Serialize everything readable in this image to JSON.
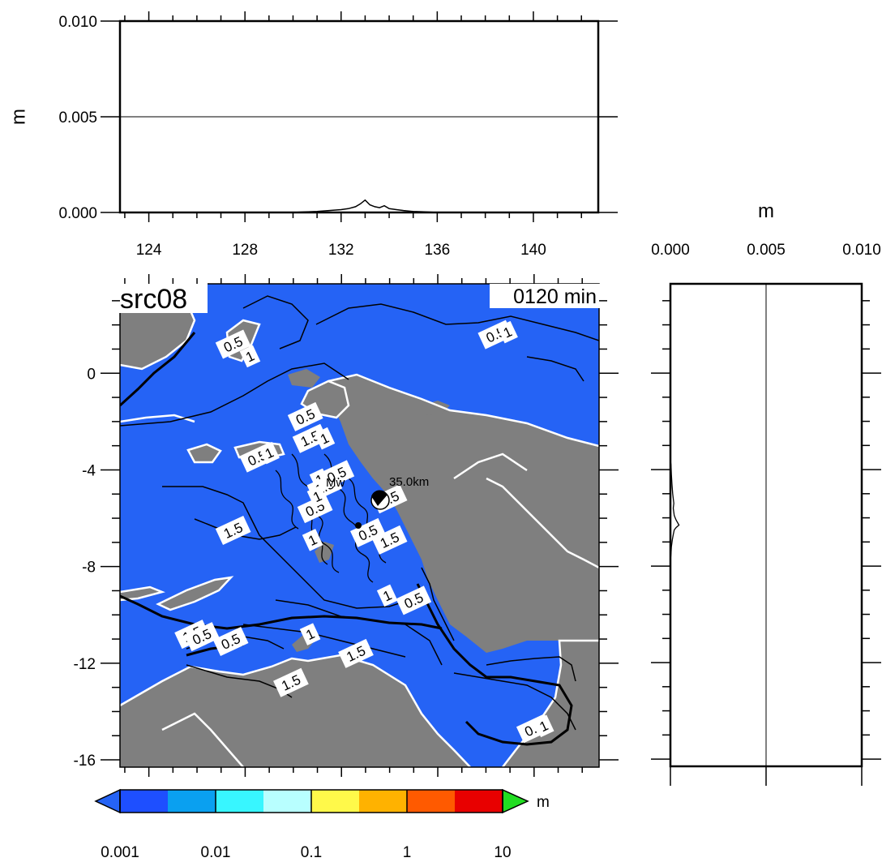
{
  "chart_data": [
    {
      "name": "top-profile",
      "type": "line",
      "ylabel": "m",
      "xlim": [
        122.8,
        142.7
      ],
      "ylim": [
        0,
        0.01
      ],
      "x_ticks": [
        "124",
        "128",
        "132",
        "136",
        "140"
      ],
      "y_ticks": [
        "0.000",
        "0.005",
        "0.010"
      ],
      "gridline_y": 0.005,
      "series": [
        {
          "x": [
            122.8,
            128,
            129,
            130,
            130.5,
            131,
            131.5,
            132,
            132.3,
            132.6,
            132.8,
            133,
            133.2,
            133.4,
            133.6,
            133.8,
            134,
            134.3,
            134.6,
            135,
            135.5,
            136,
            137,
            142.7
          ],
          "y": [
            0,
            0,
            0,
            0,
            3e-05,
            5e-05,
            0.0001,
            0.00015,
            0.0002,
            0.0003,
            0.00045,
            0.00065,
            0.0004,
            0.0003,
            0.00025,
            0.00035,
            0.0002,
            0.00015,
            0.0001,
            5e-05,
            3e-05,
            0,
            0,
            0
          ]
        }
      ]
    },
    {
      "name": "side-profile",
      "type": "line",
      "xlabel": "m",
      "xlim": [
        0,
        0.01
      ],
      "ylim": [
        -16.3,
        3.7
      ],
      "x_ticks": [
        "0.000",
        "0.005",
        "0.010"
      ],
      "gridline_x": 0.005,
      "series": [
        {
          "x": [
            0,
            0,
            0,
            3e-05,
            5e-05,
            8e-05,
            0.00012,
            0.00018,
            0.00015,
            0.0002,
            0.00025,
            0.0003,
            0.00045,
            0.0003,
            0.0002,
            0.00015,
            0.0001,
            5e-05,
            3e-05,
            0,
            0
          ],
          "y": [
            3.7,
            -3.4,
            -3.6,
            -3.8,
            -4.2,
            -4.6,
            -5.0,
            -5.4,
            -5.6,
            -5.9,
            -6.0,
            -6.1,
            -6.3,
            -6.4,
            -6.5,
            -6.7,
            -6.9,
            -7.2,
            -7.5,
            -7.8,
            -16.3
          ]
        }
      ]
    },
    {
      "name": "main-map",
      "type": "heatmap",
      "title": "src08",
      "time_label": "0120 min",
      "xlim": [
        122.8,
        142.7
      ],
      "ylim": [
        -16.3,
        3.7
      ],
      "y_ticks": [
        "0",
        "-4",
        "-8",
        "-12",
        "-16"
      ],
      "ocean_color": "#2563f5",
      "land_color": "#7f7f7f",
      "coast_color": "#ffffff",
      "contour_labels": [
        {
          "text": "0.5",
          "lon": 127.5,
          "lat": 1.2
        },
        {
          "text": "1",
          "lon": 128.2,
          "lat": 0.7
        },
        {
          "text": "0.5",
          "lon": 138.4,
          "lat": 1.6
        },
        {
          "text": "1",
          "lon": 138.9,
          "lat": 1.7
        },
        {
          "text": "0.5",
          "lon": 130.5,
          "lat": -1.8
        },
        {
          "text": "1.5",
          "lon": 130.7,
          "lat": -2.7
        },
        {
          "text": "1",
          "lon": 131.3,
          "lat": -2.7
        },
        {
          "text": "0.5",
          "lon": 128.5,
          "lat": -3.5
        },
        {
          "text": "1",
          "lon": 129.0,
          "lat": -3.3
        },
        {
          "text": "1",
          "lon": 131.1,
          "lat": -4.4
        },
        {
          "text": "1.5",
          "lon": 131.3,
          "lat": -4.7
        },
        {
          "text": "0.5",
          "lon": 131.8,
          "lat": -4.2
        },
        {
          "text": "0.5",
          "lon": 130.9,
          "lat": -5.6
        },
        {
          "text": "1",
          "lon": 131.0,
          "lat": -5.1
        },
        {
          "text": "1.5",
          "lon": 134.0,
          "lat": -5.2
        },
        {
          "text": "0.5",
          "lon": 133.1,
          "lat": -6.6
        },
        {
          "text": "1.5",
          "lon": 134.0,
          "lat": -6.9
        },
        {
          "text": "1.5",
          "lon": 127.5,
          "lat": -6.5
        },
        {
          "text": "1",
          "lon": 130.8,
          "lat": -6.9
        },
        {
          "text": "1",
          "lon": 133.9,
          "lat": -9.2
        },
        {
          "text": "0.5",
          "lon": 135.0,
          "lat": -9.4
        },
        {
          "text": "1.5",
          "lon": 125.8,
          "lat": -10.8
        },
        {
          "text": "0.5",
          "lon": 126.2,
          "lat": -10.9
        },
        {
          "text": "0.5",
          "lon": 127.4,
          "lat": -11.1
        },
        {
          "text": "1",
          "lon": 130.7,
          "lat": -10.8
        },
        {
          "text": "1.5",
          "lon": 132.6,
          "lat": -11.6
        },
        {
          "text": "1.5",
          "lon": 129.9,
          "lat": -12.8
        },
        {
          "text": "0.5",
          "lon": 140.0,
          "lat": -14.7
        },
        {
          "text": "1",
          "lon": 140.4,
          "lat": -14.6
        }
      ],
      "source": {
        "label_mw": "Mw",
        "label_depth": "35.0km",
        "lon": 133.6,
        "lat": -5.3
      }
    },
    {
      "name": "colorbar",
      "type": "colorbar",
      "unit": "m",
      "tick_labels": [
        "0.001",
        "0.01",
        "0.1",
        "1",
        "10"
      ],
      "colors": [
        "#1e4fff",
        "#0aa0f0",
        "#38f6ff",
        "#b8ffff",
        "#fff94a",
        "#ffb200",
        "#ff5a00",
        "#e80000"
      ],
      "under_color": "#2563f5",
      "over_color": "#22dd22"
    }
  ]
}
